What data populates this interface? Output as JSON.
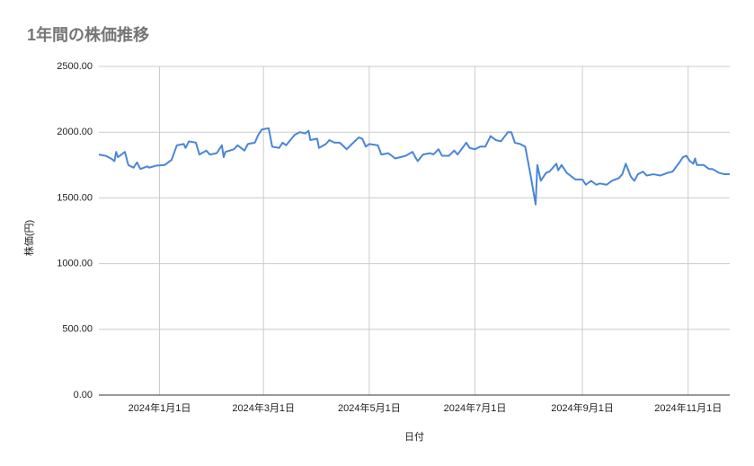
{
  "chart_data": {
    "type": "line",
    "title": "1年間の株価推移",
    "x_label": "日付",
    "y_label": "株価(円)",
    "x": [
      "2023-11-27",
      "2023-12-01",
      "2023-12-04",
      "2023-12-06",
      "2023-12-07",
      "2023-12-08",
      "2023-12-11",
      "2023-12-12",
      "2023-12-14",
      "2023-12-17",
      "2023-12-19",
      "2023-12-21",
      "2023-12-25",
      "2023-12-26",
      "2023-12-30",
      "2024-01-04",
      "2024-01-08",
      "2024-01-11",
      "2024-01-15",
      "2024-01-16",
      "2024-01-18",
      "2024-01-22",
      "2024-01-24",
      "2024-01-28",
      "2024-01-30",
      "2024-02-03",
      "2024-02-06",
      "2024-02-07",
      "2024-02-08",
      "2024-02-13",
      "2024-02-15",
      "2024-02-19",
      "2024-02-21",
      "2024-02-25",
      "2024-02-27",
      "2024-02-29",
      "2024-03-04",
      "2024-03-06",
      "2024-03-10",
      "2024-03-12",
      "2024-03-14",
      "2024-03-19",
      "2024-03-22",
      "2024-03-25",
      "2024-03-27",
      "2024-03-28",
      "2024-04-01",
      "2024-04-02",
      "2024-04-06",
      "2024-04-08",
      "2024-04-11",
      "2024-04-14",
      "2024-04-18",
      "2024-04-21",
      "2024-04-25",
      "2024-04-27",
      "2024-04-29",
      "2024-05-01",
      "2024-05-06",
      "2024-05-08",
      "2024-05-12",
      "2024-05-16",
      "2024-05-19",
      "2024-05-22",
      "2024-05-26",
      "2024-05-28",
      "2024-05-29",
      "2024-06-01",
      "2024-06-05",
      "2024-06-07",
      "2024-06-10",
      "2024-06-12",
      "2024-06-16",
      "2024-06-19",
      "2024-06-21",
      "2024-06-26",
      "2024-06-28",
      "2024-07-01",
      "2024-07-04",
      "2024-07-07",
      "2024-07-10",
      "2024-07-13",
      "2024-07-16",
      "2024-07-20",
      "2024-07-22",
      "2024-07-24",
      "2024-07-27",
      "2024-07-30",
      "2024-08-02",
      "2024-08-05",
      "2024-08-06",
      "2024-08-08",
      "2024-08-11",
      "2024-08-13",
      "2024-08-17",
      "2024-08-18",
      "2024-08-20",
      "2024-08-23",
      "2024-08-25",
      "2024-08-28",
      "2024-09-01",
      "2024-09-03",
      "2024-09-06",
      "2024-09-09",
      "2024-09-11",
      "2024-09-15",
      "2024-09-18",
      "2024-09-22",
      "2024-09-24",
      "2024-09-26",
      "2024-09-29",
      "2024-10-01",
      "2024-10-03",
      "2024-10-06",
      "2024-10-08",
      "2024-10-12",
      "2024-10-16",
      "2024-10-20",
      "2024-10-23",
      "2024-10-27",
      "2024-10-29",
      "2024-10-31",
      "2024-11-02",
      "2024-11-03",
      "2024-11-04",
      "2024-11-05",
      "2024-11-06",
      "2024-11-10",
      "2024-11-13",
      "2024-11-15",
      "2024-11-19",
      "2024-11-22",
      "2024-11-25"
    ],
    "series": [
      {
        "name": "株価(円)",
        "color": "#4a86d8",
        "values": [
          1830,
          1820,
          1800,
          1780,
          1850,
          1810,
          1840,
          1850,
          1750,
          1730,
          1770,
          1720,
          1740,
          1730,
          1745,
          1750,
          1790,
          1900,
          1910,
          1880,
          1930,
          1920,
          1830,
          1860,
          1830,
          1840,
          1900,
          1810,
          1850,
          1870,
          1900,
          1860,
          1910,
          1920,
          1980,
          2020,
          2030,
          1890,
          1880,
          1920,
          1900,
          1980,
          2000,
          1990,
          2010,
          1940,
          1950,
          1880,
          1910,
          1940,
          1920,
          1920,
          1870,
          1910,
          1960,
          1950,
          1890,
          1910,
          1900,
          1830,
          1840,
          1800,
          1810,
          1820,
          1850,
          1800,
          1780,
          1830,
          1840,
          1830,
          1870,
          1820,
          1820,
          1860,
          1830,
          1920,
          1880,
          1870,
          1890,
          1890,
          1970,
          1940,
          1930,
          2000,
          2000,
          1920,
          1910,
          1890,
          1680,
          1450,
          1750,
          1630,
          1690,
          1700,
          1760,
          1710,
          1750,
          1690,
          1670,
          1640,
          1640,
          1600,
          1630,
          1600,
          1610,
          1600,
          1630,
          1650,
          1680,
          1760,
          1660,
          1630,
          1680,
          1700,
          1670,
          1680,
          1670,
          1690,
          1700,
          1770,
          1810,
          1820,
          1780,
          1770,
          1760,
          1800,
          1750,
          1750,
          1720,
          1720,
          1690,
          1680,
          1680
        ]
      }
    ],
    "xlim": [
      "2023-11-27",
      "2024-11-25"
    ],
    "xticks": [
      {
        "value": "2024-01-01",
        "label": "2024年1月1日"
      },
      {
        "value": "2024-03-01",
        "label": "2024年3月1日"
      },
      {
        "value": "2024-05-01",
        "label": "2024年5月1日"
      },
      {
        "value": "2024-07-01",
        "label": "2024年7月1日"
      },
      {
        "value": "2024-09-01",
        "label": "2024年9月1日"
      },
      {
        "value": "2024-11-01",
        "label": "2024年11月1日"
      }
    ],
    "ylim": [
      0,
      2500
    ],
    "yticks": [
      {
        "value": 0,
        "label": "0.00"
      },
      {
        "value": 500,
        "label": "500.00"
      },
      {
        "value": 1000,
        "label": "1000.00"
      },
      {
        "value": 1500,
        "label": "1500.00"
      },
      {
        "value": 2000,
        "label": "2000.00"
      },
      {
        "value": 2500,
        "label": "2500.00"
      }
    ],
    "grid": true
  }
}
